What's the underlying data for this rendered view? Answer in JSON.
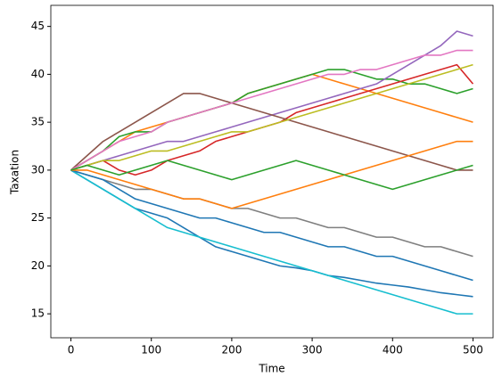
{
  "chart_data": {
    "type": "line",
    "xlabel": "Time",
    "ylabel": "Taxation",
    "x": [
      0,
      20,
      40,
      60,
      80,
      100,
      120,
      140,
      160,
      180,
      200,
      220,
      240,
      260,
      280,
      300,
      320,
      340,
      360,
      380,
      400,
      420,
      440,
      460,
      480,
      500
    ],
    "xlim": [
      -25,
      525
    ],
    "xticks": [
      0,
      100,
      200,
      300,
      400,
      500
    ],
    "ylim": [
      12.5,
      47.2
    ],
    "yticks": [
      15,
      20,
      25,
      30,
      35,
      40,
      45
    ],
    "series": [
      {
        "color": "#1f77b4",
        "values": [
          30,
          29,
          28,
          27,
          26,
          25.5,
          25,
          24,
          23,
          22,
          21.5,
          21,
          20.5,
          20,
          19.8,
          19.5,
          19,
          18.8,
          18.5,
          18.2,
          18,
          17.8,
          17.5,
          17.2,
          17,
          16.8
        ]
      },
      {
        "color": "#ff7f0e",
        "values": [
          30,
          31,
          32,
          33,
          34,
          34.5,
          35,
          35.5,
          36,
          36.5,
          37,
          38,
          38.5,
          39,
          39.5,
          40,
          39.5,
          39,
          38.5,
          38,
          37.5,
          37,
          36.5,
          36,
          35.5,
          35
        ]
      },
      {
        "color": "#2ca02c",
        "values": [
          30,
          31,
          32,
          33.5,
          34,
          34,
          35,
          35.5,
          36,
          36.5,
          37,
          38,
          38.5,
          39,
          39.5,
          40,
          40.5,
          40.5,
          40,
          39.5,
          39.5,
          39,
          39,
          38.5,
          38,
          38.5
        ]
      },
      {
        "color": "#d62728",
        "values": [
          30,
          30.5,
          31,
          30,
          29.5,
          30,
          31,
          31.5,
          32,
          33,
          33.5,
          34,
          34.5,
          35,
          36,
          36.5,
          37,
          37.5,
          38,
          38.5,
          39,
          39.5,
          40,
          40.5,
          41,
          39
        ]
      },
      {
        "color": "#9467bd",
        "values": [
          30,
          30.5,
          31,
          31.5,
          32,
          32.5,
          33,
          33,
          33.5,
          34,
          34.5,
          35,
          35.5,
          36,
          36.5,
          37,
          37.5,
          38,
          38.5,
          39,
          40,
          41,
          42,
          43,
          44.5,
          44
        ]
      },
      {
        "color": "#8c564b",
        "values": [
          30,
          31.5,
          33,
          34,
          35,
          36,
          37,
          38,
          38,
          37.5,
          37,
          36.5,
          36,
          35.5,
          35,
          34.5,
          34,
          33.5,
          33,
          32.5,
          32,
          31.5,
          31,
          30.5,
          30,
          30
        ]
      },
      {
        "color": "#e377c2",
        "values": [
          30,
          31,
          32,
          33,
          33.5,
          34,
          35,
          35.5,
          36,
          36.5,
          37,
          37.5,
          38,
          38.5,
          39,
          39.5,
          40,
          40,
          40.5,
          40.5,
          41,
          41.5,
          42,
          42,
          42.5,
          42.5
        ]
      },
      {
        "color": "#7f7f7f",
        "values": [
          30,
          29.5,
          29,
          28.5,
          28,
          28,
          27.5,
          27,
          27,
          26.5,
          26,
          26,
          25.5,
          25,
          25,
          24.5,
          24,
          24,
          23.5,
          23,
          23,
          22.5,
          22,
          22,
          21.5,
          21
        ]
      },
      {
        "color": "#bcbd22",
        "values": [
          30,
          30.5,
          31,
          31,
          31.5,
          32,
          32,
          32.5,
          33,
          33.5,
          34,
          34,
          34.5,
          35,
          35.5,
          36,
          36.5,
          37,
          37.5,
          38,
          38.5,
          39,
          39.5,
          40,
          40.5,
          41
        ]
      },
      {
        "color": "#17becf",
        "values": [
          30,
          29,
          28,
          27,
          26,
          25,
          24,
          23.5,
          23,
          22.5,
          22,
          21.5,
          21,
          20.5,
          20,
          19.5,
          19,
          18.5,
          18,
          17.5,
          17,
          16.5,
          16,
          15.5,
          15,
          15
        ]
      },
      {
        "color": "#1f77b4",
        "values": [
          30,
          29.5,
          29,
          28,
          27,
          26.5,
          26,
          25.5,
          25,
          25,
          24.5,
          24,
          23.5,
          23.5,
          23,
          22.5,
          22,
          22,
          21.5,
          21,
          21,
          20.5,
          20,
          19.5,
          19,
          18.5
        ]
      },
      {
        "color": "#ff7f0e",
        "values": [
          30,
          30,
          29.5,
          29,
          28.5,
          28,
          27.5,
          27,
          27,
          26.5,
          26,
          26.5,
          27,
          27.5,
          28,
          28.5,
          29,
          29.5,
          30,
          30.5,
          31,
          31.5,
          32,
          32.5,
          33,
          33
        ]
      },
      {
        "color": "#2ca02c",
        "values": [
          30,
          30.5,
          30,
          29.5,
          30,
          30.5,
          31,
          30.5,
          30,
          29.5,
          29,
          29.5,
          30,
          30.5,
          31,
          30.5,
          30,
          29.5,
          29,
          28.5,
          28,
          28.5,
          29,
          29.5,
          30,
          30.5
        ]
      }
    ]
  }
}
